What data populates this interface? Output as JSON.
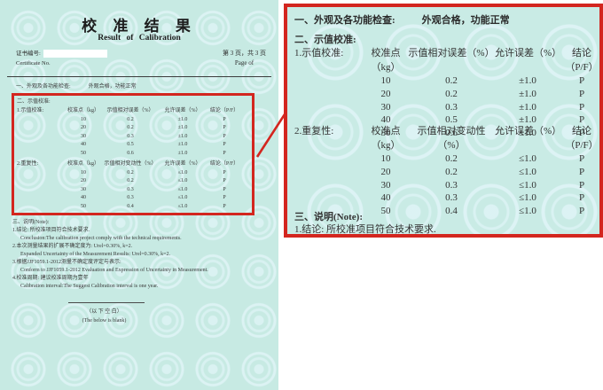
{
  "colors": {
    "page_bg": "#c7eae3",
    "accent_red": "#d3261f",
    "text": "#2e2e2e"
  },
  "doc": {
    "title_cn": "校 准 结 果",
    "title_en": "Result  of  Calibration",
    "cert_no_label_cn": "证书编号:",
    "cert_no_label_en": "Certificate No.",
    "page_info_cn": "第 3 页，共 3 页",
    "page_info_en": "Page  of",
    "section1_label": "一、外观及各功能检查:",
    "section1_value": "外观合格，功能正常",
    "section2_label": "二、示值校准:",
    "table1": {
      "label": "1.示值校准:",
      "headers": [
        "校准点（kg）",
        "示值相对误差（%）",
        "允许误差（%）",
        "结论（P/F）"
      ],
      "rows": [
        [
          "10",
          "0.2",
          "±1.0",
          "P"
        ],
        [
          "20",
          "0.2",
          "±1.0",
          "P"
        ],
        [
          "30",
          "0.3",
          "±1.0",
          "P"
        ],
        [
          "40",
          "0.5",
          "±1.0",
          "P"
        ],
        [
          "50",
          "0.6",
          "±1.0",
          "P"
        ]
      ]
    },
    "table2": {
      "label": "2.重复性:",
      "headers": [
        "校准点（kg）",
        "示值相对变动性（%）",
        "允许误差（%）",
        "结论（P/F）"
      ],
      "rows": [
        [
          "10",
          "0.2",
          "≤1.0",
          "P"
        ],
        [
          "20",
          "0.2",
          "≤1.0",
          "P"
        ],
        [
          "30",
          "0.3",
          "≤1.0",
          "P"
        ],
        [
          "40",
          "0.3",
          "≤1.0",
          "P"
        ],
        [
          "50",
          "0.4",
          "≤1.0",
          "P"
        ]
      ]
    },
    "section3_label": "三、说明(Note):",
    "notes": [
      {
        "cn": "1.结论: 所校准项目符合技术要求.",
        "en": "Conclusion:The calibration project comply with the technical requirements."
      },
      {
        "cn": "2.本次测量结果的扩展不确定度为: Urel=0.30%, k=2.",
        "en": "Expanded Uncertainty of the Measurement Results: Urel=0.30%, k=2."
      },
      {
        "cn": "3.根据JJF1059.1-2012测量不确定度评定与表示:",
        "en": "Conform to JJF1059.1-2012 Evaluation and Expression of Uncertainty in Measurement."
      },
      {
        "cn": "4.校准周期: 建议校准周期为壹年",
        "en": "Calibration interval:The Suggest Calibration interval is one year."
      }
    ],
    "footer_cn": "（以 下 空 白）",
    "footer_en": "(The below is blank)"
  }
}
